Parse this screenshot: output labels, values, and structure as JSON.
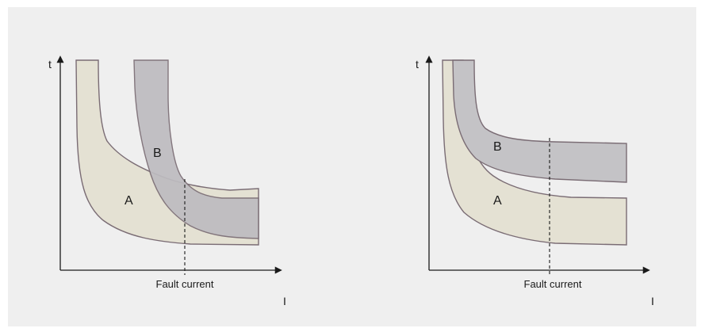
{
  "diagrams": [
    {
      "id": "left",
      "y_axis_label": "t",
      "x_axis_label": "I",
      "marker_label": "Fault current",
      "band_a_label": "A",
      "band_b_label": "B"
    },
    {
      "id": "right",
      "y_axis_label": "t",
      "x_axis_label": "I",
      "marker_label": "Fault current",
      "band_a_label": "A",
      "band_b_label": "B"
    }
  ],
  "colors": {
    "background": "#efefef",
    "band_a_fill": "#e4e1d3",
    "band_b_fill": "#bebcc0",
    "band_outline": "#7a6c74",
    "axis": "#1a1a1a"
  }
}
